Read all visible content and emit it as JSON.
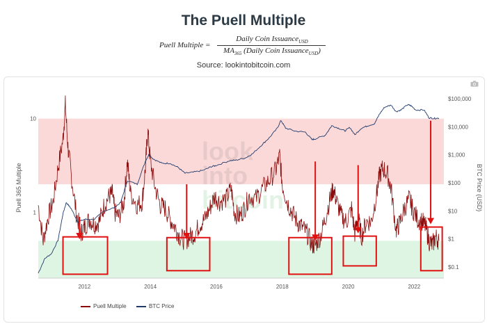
{
  "header": {
    "title": "The Puell Multiple",
    "formula_lhs": "Puell Multiple =",
    "formula_numerator": "Daily Coin IssuanceUSD",
    "formula_denominator": "MA365 (Daily Coin IssuanceUSD)",
    "source": "Source: lookintobitcoin.com"
  },
  "watermark": [
    "look",
    "into",
    "bitcoin"
  ],
  "colors": {
    "puell": "#8b0a0a",
    "btc": "#1f3a6b",
    "red_band": "#fbd9d9",
    "green_band": "#dff5e4",
    "annotation": "#e01010"
  },
  "icons": {
    "camera": "camera-icon"
  },
  "chart_data": {
    "type": "line",
    "title": "The Puell Multiple",
    "xlabel": "",
    "ylabel_left": "Puell 365 Multiple",
    "ylabel_right": "BTC Price (USD)",
    "x_ticks": [
      "2012",
      "2014",
      "2016",
      "2018",
      "2020",
      "2022"
    ],
    "y_left_ticks": [
      "10",
      "1"
    ],
    "y_right_ticks": [
      "$100,000",
      "$10,000",
      "$1,000",
      "$100",
      "$10",
      "$1",
      "$0.1"
    ],
    "xlim": [
      2010.6,
      2022.9
    ],
    "ylim_left": [
      0.2,
      20
    ],
    "ylim_right": [
      0.04,
      200000
    ],
    "scale": "log",
    "bands": [
      {
        "name": "overvalued",
        "from": 2,
        "to": 10
      },
      {
        "name": "undervalued",
        "from": 0.2,
        "to": 0.5
      }
    ],
    "legend_position": "bottom-left",
    "series": [
      {
        "name": "Puell Multiple",
        "axis": "left",
        "points": [
          [
            2010.6,
            1.2
          ],
          [
            2010.75,
            0.5
          ],
          [
            2010.9,
            0.9
          ],
          [
            2011.05,
            1.3
          ],
          [
            2011.2,
            3.0
          ],
          [
            2011.35,
            6.0
          ],
          [
            2011.42,
            14
          ],
          [
            2011.5,
            5
          ],
          [
            2011.6,
            2.5
          ],
          [
            2011.75,
            1.0
          ],
          [
            2011.9,
            0.6
          ],
          [
            2012.0,
            0.7
          ],
          [
            2012.15,
            0.85
          ],
          [
            2012.3,
            0.75
          ],
          [
            2012.45,
            0.8
          ],
          [
            2012.6,
            1.2
          ],
          [
            2012.75,
            1.5
          ],
          [
            2012.85,
            1.6
          ],
          [
            2012.92,
            1.0
          ],
          [
            2013.05,
            0.9
          ],
          [
            2013.2,
            1.3
          ],
          [
            2013.3,
            3.5
          ],
          [
            2013.4,
            1.6
          ],
          [
            2013.6,
            1.2
          ],
          [
            2013.75,
            1.3
          ],
          [
            2013.85,
            3.0
          ],
          [
            2013.92,
            7.5
          ],
          [
            2014.0,
            3.5
          ],
          [
            2014.15,
            1.8
          ],
          [
            2014.3,
            1.2
          ],
          [
            2014.45,
            1.1
          ],
          [
            2014.6,
            0.85
          ],
          [
            2014.75,
            0.7
          ],
          [
            2014.9,
            0.55
          ],
          [
            2015.05,
            0.5
          ],
          [
            2015.2,
            0.55
          ],
          [
            2015.35,
            0.6
          ],
          [
            2015.5,
            0.75
          ],
          [
            2015.65,
            0.85
          ],
          [
            2015.8,
            1.1
          ],
          [
            2015.95,
            1.5
          ],
          [
            2016.1,
            1.3
          ],
          [
            2016.3,
            1.4
          ],
          [
            2016.45,
            1.8
          ],
          [
            2016.55,
            1.0
          ],
          [
            2016.7,
            0.9
          ],
          [
            2016.85,
            1.1
          ],
          [
            2017.0,
            1.5
          ],
          [
            2017.2,
            1.4
          ],
          [
            2017.4,
            1.8
          ],
          [
            2017.6,
            2.2
          ],
          [
            2017.8,
            2.8
          ],
          [
            2017.92,
            4.0
          ],
          [
            2018.0,
            2.0
          ],
          [
            2018.15,
            1.3
          ],
          [
            2018.3,
            1.0
          ],
          [
            2018.45,
            0.8
          ],
          [
            2018.6,
            0.7
          ],
          [
            2018.75,
            0.6
          ],
          [
            2018.9,
            0.45
          ],
          [
            2019.0,
            0.45
          ],
          [
            2019.15,
            0.55
          ],
          [
            2019.3,
            0.85
          ],
          [
            2019.45,
            1.4
          ],
          [
            2019.55,
            1.8
          ],
          [
            2019.65,
            1.3
          ],
          [
            2019.8,
            0.9
          ],
          [
            2019.95,
            0.8
          ],
          [
            2020.1,
            1.1
          ],
          [
            2020.2,
            0.6
          ],
          [
            2020.3,
            0.9
          ],
          [
            2020.4,
            0.55
          ],
          [
            2020.55,
            0.8
          ],
          [
            2020.7,
            0.8
          ],
          [
            2020.85,
            1.5
          ],
          [
            2020.95,
            2.5
          ],
          [
            2021.05,
            3.0
          ],
          [
            2021.2,
            2.5
          ],
          [
            2021.3,
            1.8
          ],
          [
            2021.45,
            0.65
          ],
          [
            2021.55,
            0.75
          ],
          [
            2021.7,
            1.1
          ],
          [
            2021.85,
            1.4
          ],
          [
            2021.95,
            1.1
          ],
          [
            2022.1,
            0.85
          ],
          [
            2022.25,
            0.8
          ],
          [
            2022.35,
            0.7
          ],
          [
            2022.45,
            0.5
          ],
          [
            2022.55,
            0.45
          ],
          [
            2022.65,
            0.55
          ],
          [
            2022.75,
            0.5
          ]
        ]
      },
      {
        "name": "BTC Price",
        "axis": "right",
        "points": [
          [
            2010.6,
            0.06
          ],
          [
            2010.8,
            0.2
          ],
          [
            2011.0,
            0.3
          ],
          [
            2011.2,
            0.9
          ],
          [
            2011.35,
            8
          ],
          [
            2011.45,
            20
          ],
          [
            2011.6,
            12
          ],
          [
            2011.8,
            4
          ],
          [
            2012.0,
            5
          ],
          [
            2012.3,
            5
          ],
          [
            2012.6,
            10
          ],
          [
            2012.9,
            13
          ],
          [
            2013.1,
            20
          ],
          [
            2013.3,
            120
          ],
          [
            2013.6,
            90
          ],
          [
            2013.85,
            600
          ],
          [
            2013.95,
            1000
          ],
          [
            2014.1,
            700
          ],
          [
            2014.35,
            500
          ],
          [
            2014.6,
            500
          ],
          [
            2014.85,
            350
          ],
          [
            2015.05,
            220
          ],
          [
            2015.3,
            240
          ],
          [
            2015.6,
            280
          ],
          [
            2015.85,
            380
          ],
          [
            2016.0,
            420
          ],
          [
            2016.4,
            620
          ],
          [
            2016.6,
            650
          ],
          [
            2016.9,
            800
          ],
          [
            2017.1,
            1100
          ],
          [
            2017.4,
            2400
          ],
          [
            2017.6,
            4000
          ],
          [
            2017.85,
            9000
          ],
          [
            2017.96,
            17000
          ],
          [
            2018.1,
            9000
          ],
          [
            2018.4,
            7000
          ],
          [
            2018.7,
            6500
          ],
          [
            2018.9,
            3500
          ],
          [
            2019.0,
            3700
          ],
          [
            2019.3,
            5000
          ],
          [
            2019.5,
            11000
          ],
          [
            2019.7,
            9000
          ],
          [
            2019.9,
            7200
          ],
          [
            2020.05,
            9500
          ],
          [
            2020.2,
            5200
          ],
          [
            2020.4,
            9000
          ],
          [
            2020.6,
            11000
          ],
          [
            2020.8,
            13000
          ],
          [
            2020.95,
            29000
          ],
          [
            2021.1,
            50000
          ],
          [
            2021.3,
            60000
          ],
          [
            2021.45,
            35000
          ],
          [
            2021.6,
            40000
          ],
          [
            2021.8,
            62000
          ],
          [
            2021.9,
            57000
          ],
          [
            2022.05,
            40000
          ],
          [
            2022.3,
            40000
          ],
          [
            2022.45,
            21000
          ],
          [
            2022.6,
            20000
          ],
          [
            2022.75,
            20500
          ]
        ]
      }
    ],
    "annotations": [
      {
        "type": "arrow",
        "x": 2011.85,
        "y_from": 0.9,
        "y_to": 0.52
      },
      {
        "type": "box",
        "x": [
          2011.35,
          2012.7
        ],
        "y": [
          0.22,
          0.55
        ]
      },
      {
        "type": "arrow",
        "x": 2015.1,
        "y_from": 2.0,
        "y_to": 0.52
      },
      {
        "type": "box",
        "x": [
          2014.5,
          2015.8
        ],
        "y": [
          0.24,
          0.54
        ]
      },
      {
        "type": "arrow",
        "x": 2019.0,
        "y_from": 3.5,
        "y_to": 0.5
      },
      {
        "type": "box",
        "x": [
          2018.2,
          2019.5
        ],
        "y": [
          0.22,
          0.54
        ]
      },
      {
        "type": "arrow",
        "x": 2020.3,
        "y_from": 3.2,
        "y_to": 0.6
      },
      {
        "type": "box",
        "x": [
          2019.85,
          2020.85
        ],
        "y": [
          0.27,
          0.56
        ]
      },
      {
        "type": "arrow",
        "x": 2022.5,
        "y_from": 9.5,
        "y_to": 0.75
      },
      {
        "type": "box",
        "x": [
          2022.2,
          2022.85
        ],
        "y": [
          0.24,
          0.7
        ]
      }
    ]
  }
}
